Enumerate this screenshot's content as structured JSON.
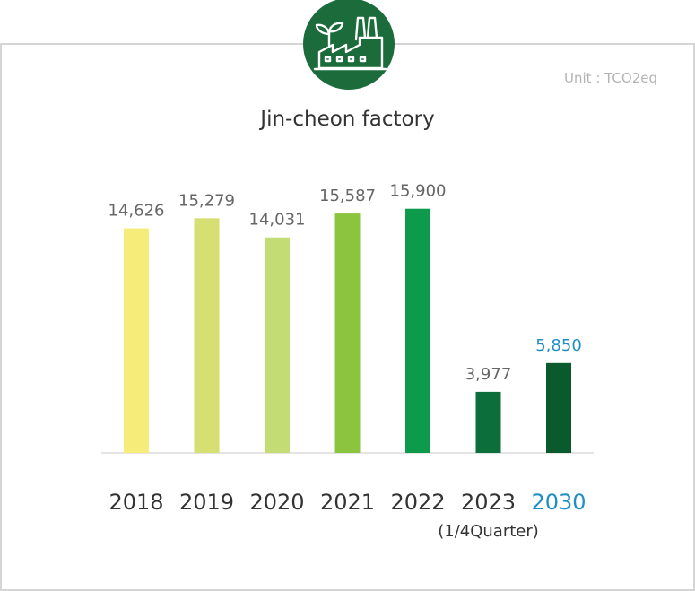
{
  "header": {
    "icon": "factory-with-leaf-icon",
    "unit_label": "Unit : TCO2eq",
    "title": "Jin-cheon factory"
  },
  "chart_data": {
    "type": "bar",
    "title": "Jin-cheon factory",
    "unit": "Unit : TCO2eq",
    "categories": [
      "2018",
      "2019",
      "2020",
      "2021",
      "2022",
      "2023",
      "2030"
    ],
    "category_sublabels": [
      "",
      "",
      "",
      "",
      "",
      "(1/4Quarter)",
      ""
    ],
    "values": [
      14626,
      15279,
      14031,
      15587,
      15900,
      3977,
      5850
    ],
    "value_labels": [
      "14,626",
      "15,279",
      "14,031",
      "15,587",
      "15,900",
      "3,977",
      "5,850"
    ],
    "bar_colors": [
      "#f5ec7a",
      "#d5df72",
      "#c4dc74",
      "#8bc43f",
      "#0d9a4a",
      "#0c6e3a",
      "#0b5a2e"
    ],
    "label_colors": [
      "#666666",
      "#666666",
      "#666666",
      "#666666",
      "#666666",
      "#666666",
      "#1f8ec6"
    ],
    "tick_colors": [
      "#333333",
      "#333333",
      "#333333",
      "#333333",
      "#333333",
      "#333333",
      "#1f8ec6"
    ],
    "ylim": [
      0,
      16000
    ],
    "grid": false,
    "xlabel": "",
    "ylabel": ""
  }
}
